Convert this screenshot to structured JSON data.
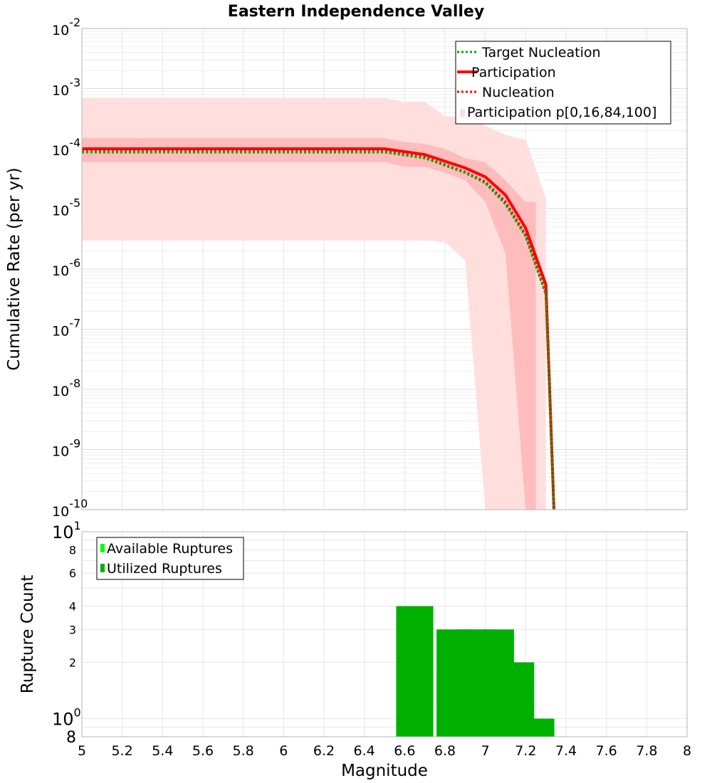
{
  "title": "Eastern Independence Valley",
  "chart_data": [
    {
      "type": "line",
      "title": "Eastern Independence Valley",
      "ylabel": "Cumulative Rate (per yr)",
      "yscale": "log",
      "xlim": [
        5,
        8
      ],
      "ylim": [
        1e-10,
        0.01
      ],
      "y_ticks": [
        {
          "mant": "10",
          "exp": "-2",
          "v": 0.01
        },
        {
          "mant": "10",
          "exp": "-3",
          "v": 0.001
        },
        {
          "mant": "10",
          "exp": "-4",
          "v": 0.0001
        },
        {
          "mant": "10",
          "exp": "-5",
          "v": 1e-05
        },
        {
          "mant": "10",
          "exp": "-6",
          "v": 1e-06
        },
        {
          "mant": "10",
          "exp": "-7",
          "v": 1e-07
        },
        {
          "mant": "10",
          "exp": "-8",
          "v": 1e-08
        },
        {
          "mant": "10",
          "exp": "-9",
          "v": 1e-09
        },
        {
          "mant": "10",
          "exp": "-10",
          "v": 1e-10
        }
      ],
      "grid": true,
      "legend_position": "top-right",
      "legend": [
        {
          "label": "Target Nucleation",
          "style": "dotted",
          "color": "#00aa00"
        },
        {
          "label": "Participation",
          "style": "solid",
          "color": "#ff0000"
        },
        {
          "label": "Nucleation",
          "style": "dotted",
          "color": "#ff0000"
        },
        {
          "label": "Participation p[0,16,84,100]",
          "style": "band",
          "color": "#ffdede"
        }
      ],
      "series": [
        {
          "name": "Participation",
          "style": "solid",
          "color": "#ff0000",
          "x": [
            5.0,
            6.5,
            6.7,
            6.9,
            7.0,
            7.1,
            7.2,
            7.3,
            7.34
          ],
          "y": [
            0.0001,
            0.0001,
            8e-05,
            4.8e-05,
            3.4e-05,
            1.7e-05,
            4.8e-06,
            5.5e-07,
            1e-10
          ]
        },
        {
          "name": "Nucleation",
          "style": "dotted",
          "color": "#ff0000",
          "x": [
            5.0,
            6.5,
            6.7,
            6.9,
            7.0,
            7.1,
            7.2,
            7.3,
            7.34
          ],
          "y": [
            9e-05,
            9e-05,
            7.2e-05,
            4.1e-05,
            2.8e-05,
            1.3e-05,
            3.7e-06,
            4e-07,
            1e-10
          ]
        },
        {
          "name": "Target Nucleation",
          "style": "dotted",
          "color": "#00aa00",
          "x": [
            5.0,
            6.5,
            6.7,
            6.9,
            7.0,
            7.1,
            7.2,
            7.3,
            7.34
          ],
          "y": [
            8.8e-05,
            8.8e-05,
            7e-05,
            4e-05,
            2.7e-05,
            1.2e-05,
            3.5e-06,
            3.8e-07,
            1e-10
          ]
        }
      ],
      "bands": [
        {
          "name": "Participation p[0,100]",
          "color": "#ffdede",
          "x": [
            5.0,
            6.5,
            6.6,
            6.7,
            6.8,
            6.9,
            7.0,
            7.1,
            7.2,
            7.3
          ],
          "low": [
            3e-06,
            3e-06,
            3e-06,
            3e-06,
            2.8e-06,
            1.4e-06,
            1e-10,
            1e-10,
            1e-10,
            1e-10
          ],
          "high": [
            0.0007,
            0.0007,
            0.0006,
            0.0006,
            0.00035,
            0.00033,
            0.00024,
            0.00017,
            0.00014,
            1.5e-05
          ]
        },
        {
          "name": "Participation p[16,84]",
          "color": "#ffbcbc",
          "x": [
            5.0,
            6.5,
            6.6,
            6.7,
            6.8,
            6.9,
            7.0,
            7.1,
            7.2,
            7.25
          ],
          "low": [
            6e-05,
            6e-05,
            5e-05,
            5e-05,
            4e-05,
            3e-05,
            1.3e-05,
            1.8e-06,
            1e-10,
            1e-10
          ],
          "high": [
            0.00015,
            0.00015,
            0.00013,
            0.00012,
            0.0001,
            7e-05,
            6e-05,
            3e-05,
            1.3e-05,
            1.3e-05
          ]
        }
      ]
    },
    {
      "type": "bar",
      "xlabel": "Magnitude",
      "ylabel": "Rupture Count",
      "yscale": "log",
      "xlim": [
        5,
        8
      ],
      "ylim": [
        0.8,
        10
      ],
      "x_ticks": [
        "5",
        "5.2",
        "5.4",
        "5.6",
        "5.8",
        "6",
        "6.2",
        "6.4",
        "6.6",
        "6.8",
        "7",
        "7.2",
        "7.4",
        "7.6",
        "7.8",
        "8"
      ],
      "y_ticks": [
        {
          "label": "8",
          "v": 8
        },
        {
          "label": "6",
          "v": 6
        },
        {
          "label": "4",
          "v": 4
        },
        {
          "label": "3",
          "v": 3
        },
        {
          "label": "2",
          "v": 2
        }
      ],
      "y_ticks_pow": [
        {
          "mant": "10",
          "exp": "1",
          "v": 10
        },
        {
          "mant": "10",
          "exp": "0",
          "v": 1
        }
      ],
      "y_tick_bottom": "8",
      "legend_position": "top-left",
      "legend": [
        {
          "label": "Available Ruptures",
          "color": "#00ff00"
        },
        {
          "label": "Utilized Ruptures",
          "color": "#00b000"
        }
      ],
      "series": [
        {
          "name": "Utilized Ruptures",
          "color": "#00b000",
          "x": [
            6.65,
            6.85,
            6.95,
            7.05,
            7.15,
            7.25
          ],
          "values": [
            4,
            3,
            3,
            3,
            2,
            1
          ]
        }
      ]
    }
  ]
}
